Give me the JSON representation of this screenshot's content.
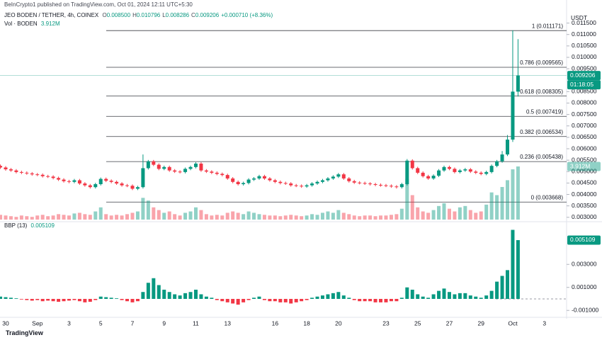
{
  "header": {
    "published": "BeInCrypto1 published on TradingView.com, Oct 01, 2024 12:11 UTC+5:30"
  },
  "footer": {
    "logo": "TradingView"
  },
  "chart_data": {
    "type": "candlestick",
    "symbol": "JEO BODEN / TETHER, 4h, COINEX",
    "ohlc": [
      {
        "key": "O",
        "value": "0.008500"
      },
      {
        "key": "H",
        "value": "0.010796"
      },
      {
        "key": "L",
        "value": "0.008286"
      },
      {
        "key": "C",
        "value": "0.009206"
      }
    ],
    "change": "+0.000710 (+8.36%)",
    "currency": "USDT",
    "up_color": "#089981",
    "down_color": "#f23645",
    "volume_up_color": "rgba(8,153,129,0.45)",
    "volume_down_color": "rgba(242,54,69,0.45)",
    "grid": false,
    "categories": [
      null,
      "30",
      null,
      null,
      null,
      null,
      null,
      "Sep",
      null,
      null,
      null,
      null,
      null,
      "3",
      null,
      null,
      null,
      null,
      null,
      "5",
      null,
      null,
      null,
      null,
      null,
      "7",
      null,
      null,
      null,
      null,
      null,
      "9",
      null,
      null,
      null,
      null,
      null,
      "11",
      null,
      null,
      null,
      null,
      null,
      "13",
      null,
      null,
      null,
      null,
      null,
      null,
      null,
      null,
      "16",
      null,
      null,
      null,
      null,
      null,
      "18",
      null,
      null,
      null,
      null,
      null,
      "20",
      null,
      null,
      null,
      null,
      null,
      null,
      null,
      null,
      "23",
      null,
      null,
      null,
      null,
      null,
      "25",
      null,
      null,
      null,
      null,
      null,
      "27",
      null,
      null,
      null,
      null,
      null,
      "29",
      null,
      null,
      null,
      null,
      null,
      "Oct",
      null,
      null,
      null,
      null,
      null,
      "3",
      null,
      null,
      null
    ],
    "open": [
      0.00525,
      0.00518,
      0.0051,
      0.00505,
      0.00498,
      0.00495,
      0.00492,
      0.00488,
      0.00486,
      0.0048,
      0.00478,
      0.00472,
      0.00465,
      0.00458,
      0.00455,
      0.00462,
      0.00448,
      0.0044,
      0.00432,
      0.00445,
      0.00468,
      0.0046,
      0.00455,
      0.00448,
      0.0044,
      0.00438,
      0.00425,
      0.00432,
      0.00515,
      0.00545,
      0.0053,
      0.00512,
      0.0052,
      0.00505,
      0.005,
      0.00498,
      0.00512,
      0.0052,
      0.00535,
      0.00505,
      0.005,
      0.00495,
      0.0049,
      0.00485,
      0.0047,
      0.00455,
      0.00445,
      0.0045,
      0.00465,
      0.0047,
      0.0048,
      0.0047,
      0.00462,
      0.00455,
      0.0045,
      0.00448,
      0.0044,
      0.00438,
      0.00435,
      0.0044,
      0.00448,
      0.00455,
      0.00462,
      0.0047,
      0.00478,
      0.00488,
      0.0047,
      0.00458,
      0.00452,
      0.0045,
      0.00448,
      0.00445,
      0.00442,
      0.0044,
      0.00438,
      0.00435,
      0.00432,
      0.00445,
      0.00548,
      0.00515,
      0.00495,
      0.0048,
      0.0047,
      0.00482,
      0.00505,
      0.0052,
      0.00512,
      0.00498,
      0.00505,
      0.0051,
      0.005,
      0.00495,
      0.0049,
      0.00498,
      0.00525,
      0.00545,
      0.00575,
      0.0064,
      0.0085,
      null,
      null,
      null,
      null,
      null,
      null,
      null,
      null
    ],
    "high": [
      0.00531,
      0.00524,
      0.00516,
      0.00511,
      0.00504,
      0.00501,
      0.00498,
      0.00494,
      0.00492,
      0.00486,
      0.00484,
      0.00478,
      0.00471,
      0.00464,
      0.00468,
      0.00468,
      0.00454,
      0.00446,
      0.00451,
      0.00474,
      0.00474,
      0.00466,
      0.00461,
      0.00454,
      0.00446,
      0.00444,
      0.00438,
      0.00575,
      0.00551,
      0.00551,
      0.00536,
      0.00526,
      0.00526,
      0.00511,
      0.00506,
      0.00518,
      0.00526,
      0.00541,
      0.00541,
      0.00511,
      0.00506,
      0.00501,
      0.00496,
      0.00491,
      0.00476,
      0.00461,
      0.00456,
      0.00471,
      0.00476,
      0.00486,
      0.00486,
      0.00476,
      0.00468,
      0.00461,
      0.00456,
      0.00454,
      0.00446,
      0.00444,
      0.00446,
      0.00454,
      0.00461,
      0.00468,
      0.00476,
      0.00484,
      0.00494,
      0.00494,
      0.00476,
      0.00464,
      0.00458,
      0.00456,
      0.00454,
      0.00451,
      0.00448,
      0.00446,
      0.00444,
      0.00441,
      0.00451,
      0.00555,
      0.00554,
      0.00521,
      0.00501,
      0.00486,
      0.00488,
      0.00511,
      0.00526,
      0.00526,
      0.00518,
      0.00511,
      0.00516,
      0.00516,
      0.00506,
      0.00501,
      0.00504,
      0.00531,
      0.00551,
      0.0059,
      0.0066,
      0.01118,
      0.010796,
      null,
      null,
      null,
      null,
      null,
      null,
      null,
      null
    ],
    "low": [
      0.00512,
      0.00504,
      0.00499,
      0.00492,
      0.00489,
      0.00486,
      0.00482,
      0.0048,
      0.00474,
      0.00472,
      0.00466,
      0.00459,
      0.00452,
      0.00449,
      0.00449,
      0.00442,
      0.00434,
      0.00426,
      0.00426,
      0.00439,
      0.00454,
      0.00449,
      0.00442,
      0.00434,
      0.00432,
      0.00419,
      0.00419,
      0.00426,
      0.00509,
      0.00524,
      0.00506,
      0.00506,
      0.00499,
      0.00494,
      0.00492,
      0.00492,
      0.00506,
      0.00514,
      0.00499,
      0.00494,
      0.00489,
      0.00484,
      0.00479,
      0.00464,
      0.00449,
      0.00439,
      0.00439,
      0.00444,
      0.00459,
      0.00464,
      0.00464,
      0.00456,
      0.00449,
      0.00444,
      0.00442,
      0.00434,
      0.00432,
      0.00429,
      0.00429,
      0.00434,
      0.00442,
      0.00449,
      0.00456,
      0.00464,
      0.00472,
      0.00464,
      0.00452,
      0.00446,
      0.00444,
      0.00442,
      0.00439,
      0.00436,
      0.00434,
      0.00432,
      0.00429,
      0.00426,
      0.00426,
      0.00439,
      0.00509,
      0.00489,
      0.00474,
      0.00464,
      0.00464,
      0.00476,
      0.00499,
      0.00506,
      0.00492,
      0.00492,
      0.00499,
      0.00494,
      0.00489,
      0.00484,
      0.00484,
      0.00492,
      0.00519,
      0.00539,
      0.00568,
      0.0063,
      0.008286,
      null,
      null,
      null,
      null,
      null,
      null,
      null,
      null
    ],
    "close": [
      0.00518,
      0.0051,
      0.00505,
      0.00498,
      0.00495,
      0.00492,
      0.00488,
      0.00486,
      0.0048,
      0.00478,
      0.00472,
      0.00465,
      0.00458,
      0.00455,
      0.00462,
      0.00448,
      0.0044,
      0.00432,
      0.00445,
      0.00468,
      0.0046,
      0.00455,
      0.00448,
      0.0044,
      0.00438,
      0.00425,
      0.00432,
      0.00515,
      0.00545,
      0.0053,
      0.00512,
      0.0052,
      0.00505,
      0.005,
      0.00498,
      0.00512,
      0.0052,
      0.00535,
      0.00505,
      0.005,
      0.00495,
      0.0049,
      0.00485,
      0.0047,
      0.00455,
      0.00445,
      0.0045,
      0.00465,
      0.0047,
      0.0048,
      0.0047,
      0.00462,
      0.00455,
      0.0045,
      0.00448,
      0.0044,
      0.00438,
      0.00435,
      0.0044,
      0.00448,
      0.00455,
      0.00462,
      0.0047,
      0.00478,
      0.00488,
      0.0047,
      0.00458,
      0.00452,
      0.0045,
      0.00448,
      0.00445,
      0.00442,
      0.0044,
      0.00438,
      0.00435,
      0.00432,
      0.00445,
      0.00548,
      0.00515,
      0.00495,
      0.0048,
      0.0047,
      0.00482,
      0.00505,
      0.0052,
      0.00512,
      0.00498,
      0.00505,
      0.0051,
      0.005,
      0.00495,
      0.0049,
      0.00498,
      0.00525,
      0.00545,
      0.00575,
      0.0064,
      0.0085,
      0.009206,
      null,
      null,
      null,
      null,
      null,
      null,
      null,
      null
    ],
    "last_price_label": "0.009206",
    "countdown": "01:18:05",
    "ylim": [
      0.0029,
      0.0122
    ],
    "yticks": [
      {
        "value": 0.0115,
        "label": "0.011500"
      },
      {
        "value": 0.011,
        "label": "0.011000"
      },
      {
        "value": 0.0105,
        "label": "0.010500"
      },
      {
        "value": 0.01,
        "label": "0.010000"
      },
      {
        "value": 0.0095,
        "label": "0.009500"
      },
      {
        "value": 0.0085,
        "label": "0.008500"
      },
      {
        "value": 0.008,
        "label": "0.008000"
      },
      {
        "value": 0.0075,
        "label": "0.007500"
      },
      {
        "value": 0.007,
        "label": "0.007000"
      },
      {
        "value": 0.0065,
        "label": "0.006500"
      },
      {
        "value": 0.006,
        "label": "0.006000"
      },
      {
        "value": 0.0055,
        "label": "0.005500"
      },
      {
        "value": 0.005,
        "label": "0.005000"
      },
      {
        "value": 0.0045,
        "label": "0.004500"
      },
      {
        "value": 0.004,
        "label": "0.004000"
      },
      {
        "value": 0.0035,
        "label": "0.003500"
      },
      {
        "value": 0.003,
        "label": "0.003000"
      }
    ],
    "fib_levels": [
      {
        "label": "1 (0.011171)",
        "value": 0.011171
      },
      {
        "label": "0.786 (0.009565)",
        "value": 0.009565
      },
      {
        "label": "0.618 (0.008305)",
        "value": 0.008305
      },
      {
        "label": "0.5 (0.007419)",
        "value": 0.007419
      },
      {
        "label": "0.382 (0.006534)",
        "value": 0.006534
      },
      {
        "label": "0.236 (0.005438)",
        "value": 0.005438
      },
      {
        "label": "0 (0.003668)",
        "value": 0.003668
      }
    ],
    "volume": {
      "name": "Vol · BODEN",
      "last_value_label": "3.912M",
      "values": [
        0.35,
        0.3,
        0.25,
        0.2,
        0.3,
        0.25,
        0.2,
        0.3,
        0.35,
        0.25,
        0.3,
        0.4,
        0.35,
        0.3,
        0.45,
        0.5,
        0.4,
        0.35,
        0.6,
        0.9,
        0.4,
        0.3,
        0.35,
        0.3,
        0.4,
        0.5,
        0.6,
        1.6,
        1.4,
        0.9,
        0.7,
        0.5,
        0.6,
        0.4,
        0.3,
        0.5,
        0.6,
        0.9,
        0.7,
        0.4,
        0.3,
        0.35,
        0.3,
        0.5,
        0.6,
        0.5,
        0.4,
        0.6,
        0.5,
        0.4,
        0.35,
        0.3,
        0.3,
        0.25,
        0.3,
        0.35,
        0.3,
        0.25,
        0.3,
        0.4,
        0.35,
        0.5,
        0.6,
        0.5,
        0.7,
        0.5,
        0.4,
        0.3,
        0.25,
        0.3,
        0.3,
        0.25,
        0.3,
        0.3,
        0.35,
        0.4,
        0.8,
        3.0,
        1.8,
        0.9,
        0.6,
        0.5,
        0.7,
        1.0,
        1.2,
        0.8,
        0.6,
        0.9,
        1.0,
        0.7,
        0.5,
        0.6,
        1.1,
        2.0,
        1.8,
        2.4,
        2.9,
        3.7,
        3.912,
        null,
        null,
        null,
        null,
        null,
        null,
        null,
        null
      ]
    },
    "bbp": {
      "name": "BBP (13)",
      "last_value_label": "0.005109",
      "ylim": [
        -0.00154,
        0.0064
      ],
      "yticks": [
        {
          "value": 0.003,
          "label": "0.003000"
        },
        {
          "value": 0.001,
          "label": "0.001000"
        },
        {
          "value": -0.001,
          "label": "-0.001000"
        }
      ],
      "values": [
        0.0002,
        0.00015,
        0.0001,
        5e-05,
        -5e-05,
        -0.0001,
        -0.00015,
        -0.0001,
        -0.0002,
        -0.00015,
        -0.0002,
        -0.00025,
        -0.0002,
        -0.00015,
        -0.0001,
        -0.0002,
        -0.0003,
        -0.00025,
        -0.0001,
        0.0002,
        0.00015,
        0.0001,
        5e-05,
        -0.0001,
        -0.0002,
        -0.0003,
        -0.0002,
        0.0006,
        0.0014,
        0.0018,
        0.0012,
        0.0008,
        0.0006,
        0.0004,
        0.0003,
        0.0005,
        0.0006,
        0.0008,
        0.0004,
        0.0002,
        0.0001,
        -0.0001,
        -0.0002,
        -0.0003,
        -0.0004,
        -0.0005,
        -0.0003,
        -0.0001,
        0.0001,
        0.0002,
        -0.0001,
        -0.0002,
        -0.0002,
        -0.0003,
        -0.0003,
        -0.0004,
        -0.0003,
        -0.0002,
        -0.0001,
        0.0001,
        0.0002,
        0.0003,
        0.0004,
        0.0005,
        0.0006,
        0.0003,
        0.0001,
        -0.0001,
        -0.0002,
        -0.0002,
        -0.0002,
        -0.0003,
        -0.0003,
        -0.0003,
        -0.0002,
        -0.0002,
        0.0001,
        0.001,
        0.0008,
        0.0004,
        0.0002,
        0.0001,
        0.0004,
        0.0007,
        0.0009,
        0.0006,
        0.0004,
        0.0005,
        0.0005,
        0.0003,
        0.0002,
        0.0001,
        0.0003,
        0.0007,
        0.0015,
        0.002,
        0.0025,
        0.006,
        0.005109,
        null,
        null,
        null,
        null,
        null,
        null,
        null,
        null
      ]
    }
  }
}
